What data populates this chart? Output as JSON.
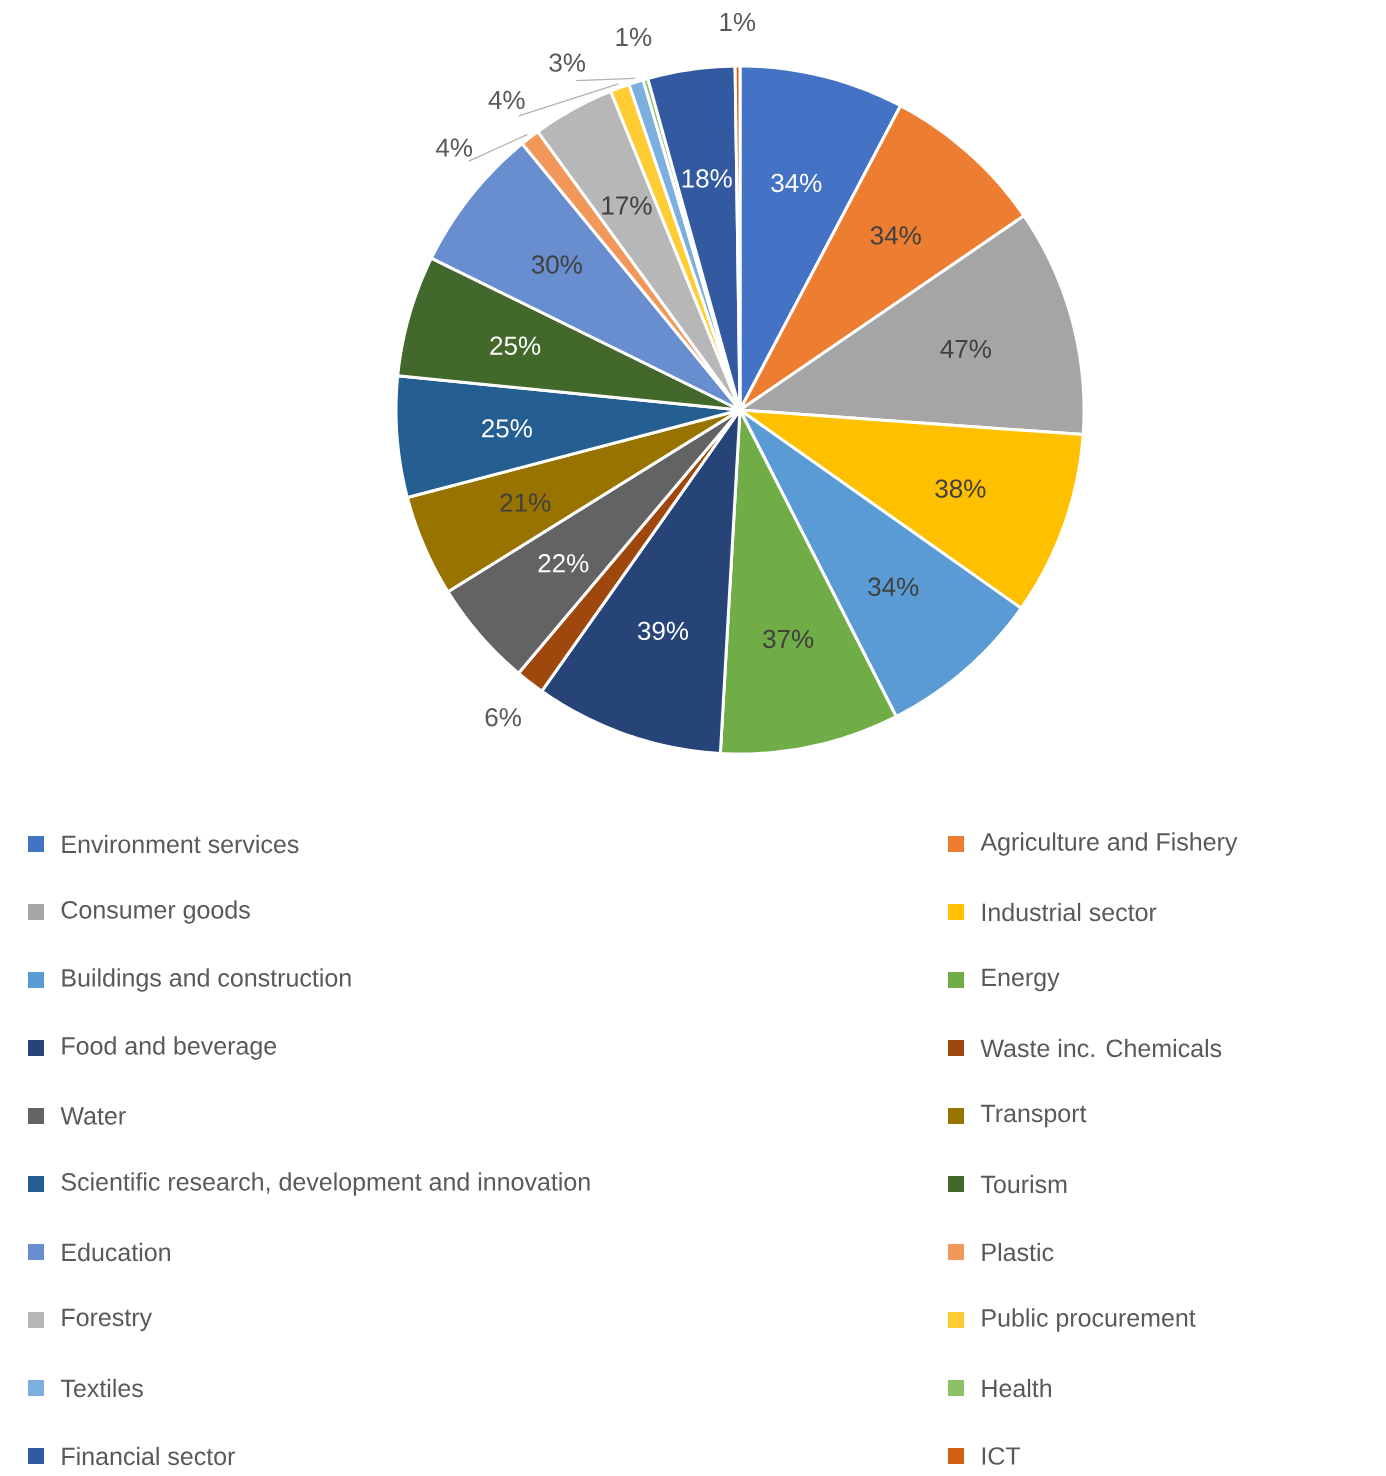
{
  "chart_data": {
    "type": "pie",
    "categories": [
      "Environment services",
      "Agriculture and Fishery",
      "Consumer goods",
      "Industrial sector",
      "Buildings and construction",
      "Energy",
      "Food and beverage",
      "Waste inc. Chemicals",
      "Water",
      "Transport",
      "Scientific research, development and innovation",
      "Tourism",
      "Education",
      "Plastic",
      "Forestry",
      "Public procurement",
      "Textiles",
      "Health",
      "Financial sector",
      "ICT"
    ],
    "values": [
      34,
      34,
      47,
      38,
      34,
      37,
      39,
      6,
      22,
      21,
      25,
      25,
      30,
      4,
      17,
      4,
      3,
      1,
      18,
      1
    ],
    "value_labels": [
      "34%",
      "34%",
      "47%",
      "38%",
      "34%",
      "37%",
      "39%",
      "6%",
      "22%",
      "21%",
      "25%",
      "25%",
      "30%",
      "4%",
      "17%",
      "4%",
      "3%",
      "1%",
      "18%",
      "1%"
    ],
    "colors": [
      "#4472c4",
      "#ed7d31",
      "#a5a5a5",
      "#ffc000",
      "#5b9bd5",
      "#70ad47",
      "#264478",
      "#9e480e",
      "#636363",
      "#997300",
      "#255e91",
      "#43682b",
      "#698ed0",
      "#f1975a",
      "#b7b7b7",
      "#ffcd33",
      "#7cafdd",
      "#8cc168",
      "#335aa1",
      "#d26012"
    ],
    "legend": "bottom"
  }
}
